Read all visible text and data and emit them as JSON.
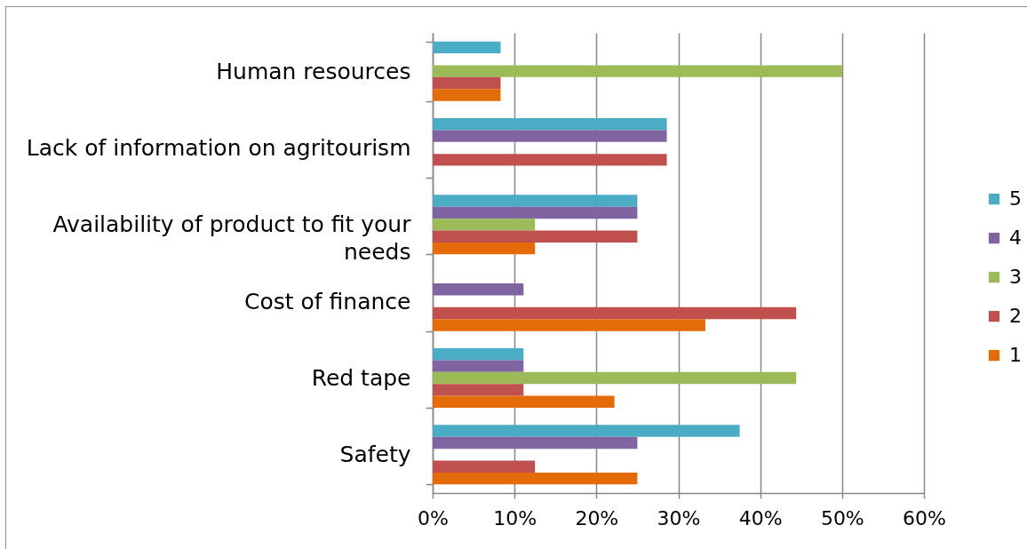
{
  "chart_data": {
    "type": "bar",
    "orientation": "horizontal",
    "categories": [
      "Human resources",
      "Lack of information on agritourism",
      "Availability of product to fit your needs",
      "Cost of finance",
      "Red tape",
      "Safety"
    ],
    "series": [
      {
        "name": "5",
        "color": "#4bacc6",
        "values": [
          8.3,
          28.6,
          25,
          0,
          11.1,
          37.5
        ]
      },
      {
        "name": "4",
        "color": "#8064a2",
        "values": [
          0,
          28.6,
          25,
          11.1,
          11.1,
          25
        ]
      },
      {
        "name": "3",
        "color": "#9bbb59",
        "values": [
          50,
          0,
          12.5,
          0,
          44.4,
          0
        ]
      },
      {
        "name": "2",
        "color": "#c0504d",
        "values": [
          8.3,
          28.6,
          25,
          44.4,
          11.1,
          12.5
        ]
      },
      {
        "name": "1",
        "color": "#e36c09",
        "values": [
          8.3,
          0,
          12.5,
          33.3,
          22.2,
          25
        ]
      }
    ],
    "xlim": [
      0,
      60
    ],
    "xticks": [
      {
        "value": 0,
        "label": "0%"
      },
      {
        "value": 10,
        "label": "10%"
      },
      {
        "value": 20,
        "label": "20%"
      },
      {
        "value": 30,
        "label": "30%"
      },
      {
        "value": 40,
        "label": "40%"
      },
      {
        "value": 50,
        "label": "50%"
      },
      {
        "value": 60,
        "label": "60%"
      }
    ],
    "grid": "x",
    "legend": "right"
  }
}
